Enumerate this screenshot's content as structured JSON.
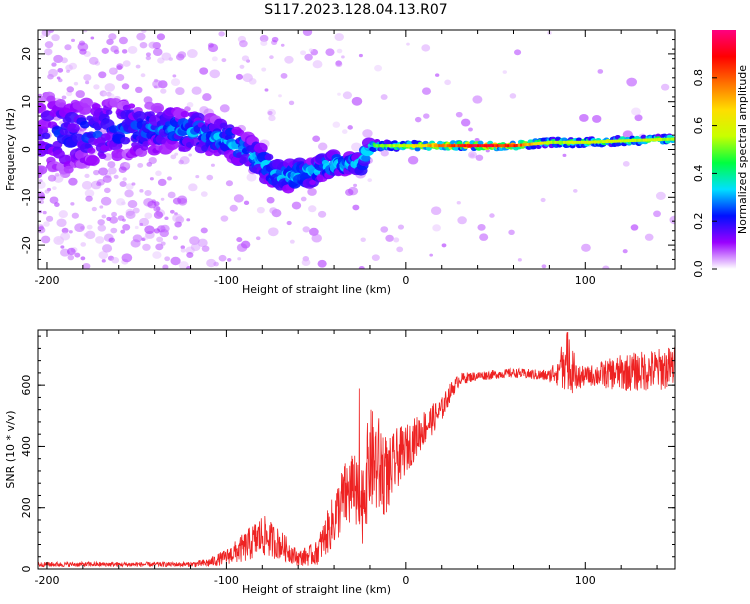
{
  "title": "S117.2023.128.04.13.R07",
  "chart_data": [
    {
      "type": "heatmap",
      "xlabel": "Height of straight line (km)",
      "ylabel": "Frequency (Hz)",
      "xlim": [
        -205,
        150
      ],
      "ylim": [
        -25,
        25
      ],
      "xticks": [
        -200,
        -100,
        0,
        100
      ],
      "yticks": [
        -20,
        -10,
        0,
        10,
        20
      ],
      "colorbar": {
        "label": "Normalized spectral amplitude",
        "range": [
          0,
          1
        ],
        "ticks": [
          0.0,
          0.2,
          0.4,
          0.6,
          0.8
        ],
        "colormap": [
          "#ffffff",
          "#9a00ff",
          "#0010ff",
          "#00e0ff",
          "#00ff40",
          "#c8ff00",
          "#ffdd00",
          "#ff7000",
          "#ff0000",
          "#ff0080"
        ]
      },
      "signal_track": [
        {
          "x": -205,
          "y": 3.0,
          "amp": 0.2,
          "spread": 9
        },
        {
          "x": -180,
          "y": 3.5,
          "amp": 0.25,
          "spread": 7
        },
        {
          "x": -160,
          "y": 4.0,
          "amp": 0.25,
          "spread": 6
        },
        {
          "x": -140,
          "y": 4.5,
          "amp": 0.28,
          "spread": 5
        },
        {
          "x": -120,
          "y": 4.0,
          "amp": 0.32,
          "spread": 4
        },
        {
          "x": -100,
          "y": 2.0,
          "amp": 0.35,
          "spread": 3.5
        },
        {
          "x": -85,
          "y": -1.0,
          "amp": 0.38,
          "spread": 3
        },
        {
          "x": -70,
          "y": -6.0,
          "amp": 0.35,
          "spread": 3
        },
        {
          "x": -55,
          "y": -5.0,
          "amp": 0.4,
          "spread": 2.5
        },
        {
          "x": -40,
          "y": -3.0,
          "amp": 0.42,
          "spread": 2
        },
        {
          "x": -25,
          "y": -3.0,
          "amp": 0.45,
          "spread": 1.5
        },
        {
          "x": -20,
          "y": 0.8,
          "amp": 0.5,
          "spread": 1
        },
        {
          "x": 0,
          "y": 0.8,
          "amp": 0.6,
          "spread": 0.8
        },
        {
          "x": 20,
          "y": 0.8,
          "amp": 0.8,
          "spread": 0.7
        },
        {
          "x": 40,
          "y": 0.8,
          "amp": 0.95,
          "spread": 0.7
        },
        {
          "x": 60,
          "y": 0.8,
          "amp": 0.85,
          "spread": 0.7
        },
        {
          "x": 80,
          "y": 1.5,
          "amp": 0.55,
          "spread": 0.8
        },
        {
          "x": 100,
          "y": 1.5,
          "amp": 0.6,
          "spread": 0.8
        },
        {
          "x": 120,
          "y": 1.8,
          "amp": 0.6,
          "spread": 0.8
        },
        {
          "x": 150,
          "y": 2.2,
          "amp": 0.55,
          "spread": 0.8
        }
      ]
    },
    {
      "type": "line",
      "xlabel": "Height of straight line (km)",
      "ylabel": "SNR (10 * v/v)",
      "xlim": [
        -205,
        150
      ],
      "ylim": [
        0,
        780
      ],
      "xticks": [
        -200,
        -100,
        0,
        100
      ],
      "yticks": [
        0,
        200,
        400,
        600
      ],
      "color": "#ee2222",
      "series": [
        {
          "x": [
            -205,
            -180,
            -160,
            -140,
            -120,
            -110,
            -100,
            -90,
            -80,
            -70,
            -60,
            -50,
            -40,
            -35,
            -30,
            -25,
            -20,
            -15,
            -10,
            -5,
            0,
            10,
            20,
            25,
            30,
            40,
            60,
            80,
            90,
            95,
            100,
            120,
            140,
            150
          ],
          "y": [
            15,
            15,
            15,
            15,
            15,
            20,
            40,
            70,
            110,
            80,
            35,
            50,
            160,
            230,
            260,
            200,
            360,
            330,
            300,
            360,
            390,
            460,
            520,
            580,
            620,
            630,
            640,
            630,
            680,
            620,
            630,
            640,
            650,
            660
          ],
          "amp": [
            8,
            8,
            8,
            8,
            8,
            15,
            25,
            50,
            70,
            50,
            25,
            40,
            90,
            110,
            130,
            140,
            170,
            170,
            120,
            100,
            80,
            60,
            40,
            30,
            20,
            15,
            15,
            20,
            100,
            50,
            30,
            60,
            70,
            70
          ]
        }
      ]
    }
  ]
}
